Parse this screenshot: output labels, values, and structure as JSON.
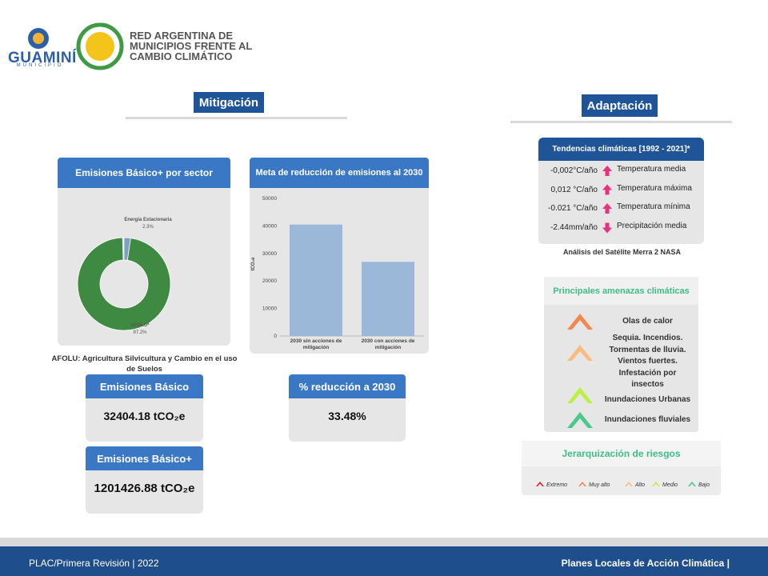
{
  "header": {
    "municipality": "GUAMINÍ",
    "municipality_sub": "MUNICIPIO",
    "network": [
      "RED ARGENTINA DE",
      "MUNICIPIOS FRENTE AL",
      "CAMBIO CLIMÁTICO"
    ]
  },
  "mitigation": {
    "title": "Mitigación",
    "afolu_note": "AFOLU: Agricultura Silvicultura y Cambio en el uso de Suelos",
    "kpis": [
      {
        "title": "Emisiones Básico",
        "value": "32404.18 tCO₂e"
      },
      {
        "title": "Emisiones Básico+",
        "value": "1201426.88 tCO₂e"
      },
      {
        "title": "% reducción a 2030",
        "value": "33.48%"
      }
    ]
  },
  "chart_data": [
    {
      "type": "donut",
      "title": "Emisiones Básico+ por sector",
      "categories": [
        "Energía Estacionaria",
        "AFOLU*"
      ],
      "values": [
        2.3,
        97.2
      ],
      "value_labels": [
        "2.3%",
        "97.2%"
      ],
      "colors": [
        "#7f9fc2",
        "#3f8a43"
      ]
    },
    {
      "type": "bar",
      "title": "Meta de reducción de emisiones al 2030",
      "y_label": "tCO₂e",
      "categories": [
        "2030 sin acciones de mitigación",
        "2030 con acciones de mitigación"
      ],
      "values": [
        40500,
        26940
      ],
      "color": "#9cb8d8",
      "ylim": [
        0,
        50000
      ],
      "yticks": [
        0,
        10000,
        20000,
        30000,
        40000,
        50000
      ]
    }
  ],
  "adaptation": {
    "title": "Adaptación",
    "trends": {
      "title": "Tendencias climáticas  [1992 - 2021]*",
      "rows": [
        {
          "value": "-0,002°C/año",
          "label": "Temperatura media",
          "direction": "up"
        },
        {
          "value": "0,012 °C/año",
          "label": "Temperatura máxima",
          "direction": "up"
        },
        {
          "value": "-0.021 °C/año",
          "label": "Temperatura mínima",
          "direction": "up"
        },
        {
          "value": "-2.44mm/año",
          "label": "Precipitación media",
          "direction": "down"
        }
      ],
      "arrow_color": "#e8317a"
    },
    "source": "Análisis del Satélite Merra 2 NASA",
    "threats": {
      "title": "Principales amenazas climáticas",
      "items": [
        {
          "text": "Olas de calor",
          "color": "#f0884f"
        },
        {
          "text": "Sequia. Incendios. Tormentas de lluvia. Vientos fuertes. Infestación por insectos",
          "color": "#f8bb80"
        },
        {
          "text": "Inundaciones Urbanas",
          "color": "#bdf046"
        },
        {
          "text": "Inundaciones fluviales",
          "color": "#4cc98a"
        }
      ]
    },
    "risks": {
      "title": "Jerarquización de riesgos",
      "levels": [
        {
          "label": "Extremo",
          "color": "#e0201b"
        },
        {
          "label": "Muy alto",
          "color": "#f0884f"
        },
        {
          "label": "Alto",
          "color": "#f8bb80"
        },
        {
          "label": "Medio",
          "color": "#bdf046"
        },
        {
          "label": "Bajo",
          "color": "#4cc98a"
        }
      ]
    }
  },
  "footer": {
    "left": "PLAC/Primera Revisión | 2022",
    "right": "Planes Locales de Acción Climática |"
  }
}
